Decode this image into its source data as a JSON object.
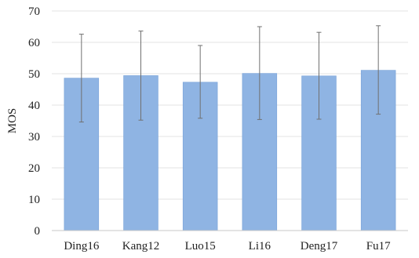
{
  "chart_data": {
    "type": "bar",
    "categories": [
      "Ding16",
      "Kang12",
      "Luo15",
      "Li16",
      "Deng17",
      "Fu17"
    ],
    "values": [
      48.6,
      49.4,
      47.3,
      50.1,
      49.3,
      51.1
    ],
    "error_low": [
      34.6,
      35.2,
      35.8,
      35.4,
      35.5,
      37.1
    ],
    "error_high": [
      62.6,
      63.6,
      59.0,
      65.0,
      63.2,
      65.3
    ],
    "title": "",
    "xlabel": "",
    "ylabel": "MOS",
    "ylim": [
      0,
      70
    ],
    "yticks": [
      0,
      10,
      20,
      30,
      40,
      50,
      60,
      70
    ],
    "grid": true,
    "legend": "none",
    "colors": {
      "bar": "#8fb4e3",
      "bar_edge": "#7aa3d8",
      "error": "#707070",
      "grid": "#e3e3e3",
      "axis": "#c8c8c8"
    }
  }
}
